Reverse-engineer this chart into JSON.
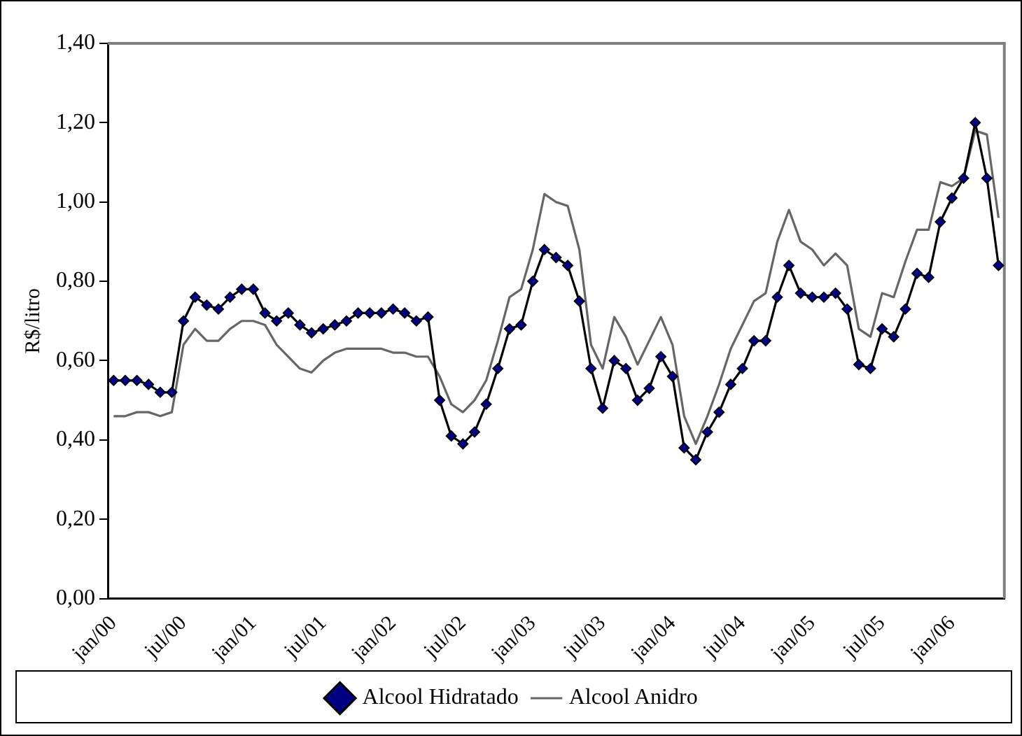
{
  "chart_data": {
    "type": "line",
    "ylabel": "R$/litro",
    "categories": [
      "jan/00",
      null,
      null,
      null,
      null,
      null,
      "jul/00",
      null,
      null,
      null,
      null,
      null,
      "jan/01",
      null,
      null,
      null,
      null,
      null,
      "jul/01",
      null,
      null,
      null,
      null,
      null,
      "jan/02",
      null,
      null,
      null,
      null,
      null,
      "jul/02",
      null,
      null,
      null,
      null,
      null,
      "jan/03",
      null,
      null,
      null,
      null,
      null,
      "jul/03",
      null,
      null,
      null,
      null,
      null,
      "jan/04",
      null,
      null,
      null,
      null,
      null,
      "jul/04",
      null,
      null,
      null,
      null,
      null,
      "jan/05",
      null,
      null,
      null,
      null,
      null,
      "jul/05",
      null,
      null,
      null,
      null,
      null,
      "jan/06",
      null,
      null,
      null,
      null
    ],
    "series": [
      {
        "name": "Alcool Hidratado",
        "color": "#000080",
        "marker": "diamond",
        "values": [
          0.55,
          0.55,
          0.55,
          0.54,
          0.52,
          0.52,
          0.7,
          0.76,
          0.74,
          0.73,
          0.76,
          0.78,
          0.78,
          0.72,
          0.7,
          0.72,
          0.69,
          0.67,
          0.68,
          0.69,
          0.7,
          0.72,
          0.72,
          0.72,
          0.73,
          0.72,
          0.7,
          0.71,
          0.5,
          0.41,
          0.39,
          0.42,
          0.49,
          0.58,
          0.68,
          0.69,
          0.8,
          0.88,
          0.86,
          0.84,
          0.75,
          0.58,
          0.48,
          0.6,
          0.58,
          0.5,
          0.53,
          0.61,
          0.56,
          0.38,
          0.35,
          0.42,
          0.47,
          0.54,
          0.58,
          0.65,
          0.65,
          0.76,
          0.84,
          0.77,
          0.76,
          0.76,
          0.77,
          0.73,
          0.59,
          0.58,
          0.68,
          0.66,
          0.73,
          0.82,
          0.81,
          0.95,
          1.01,
          1.06,
          1.2,
          1.06,
          0.84
        ]
      },
      {
        "name": "Alcool Anidro",
        "color": "#666666",
        "marker": "none",
        "values": [
          0.46,
          0.46,
          0.47,
          0.47,
          0.46,
          0.47,
          0.64,
          0.68,
          0.65,
          0.65,
          0.68,
          0.7,
          0.7,
          0.69,
          0.64,
          0.61,
          0.58,
          0.57,
          0.6,
          0.62,
          0.63,
          0.63,
          0.63,
          0.63,
          0.62,
          0.62,
          0.61,
          0.61,
          0.56,
          0.49,
          0.47,
          0.5,
          0.55,
          0.65,
          0.76,
          0.78,
          0.88,
          1.02,
          1.0,
          0.99,
          0.88,
          0.64,
          0.58,
          0.71,
          0.66,
          0.59,
          0.65,
          0.71,
          0.64,
          0.46,
          0.39,
          0.46,
          0.54,
          0.63,
          0.69,
          0.75,
          0.77,
          0.9,
          0.98,
          0.9,
          0.88,
          0.84,
          0.87,
          0.84,
          0.68,
          0.66,
          0.77,
          0.76,
          0.85,
          0.93,
          0.93,
          1.05,
          1.04,
          1.06,
          1.18,
          1.17,
          0.96
        ]
      }
    ],
    "ylim": [
      0,
      1.4
    ],
    "yticks": [
      {
        "value": 0,
        "label": "0,00"
      },
      {
        "value": 0.2,
        "label": "0,20"
      },
      {
        "value": 0.4,
        "label": "0,40"
      },
      {
        "value": 0.6,
        "label": "0,60"
      },
      {
        "value": 0.8,
        "label": "0,80"
      },
      {
        "value": 1.0,
        "label": "1,00"
      },
      {
        "value": 1.2,
        "label": "1,20"
      },
      {
        "value": 1.4,
        "label": "1,40"
      }
    ],
    "grid": false,
    "legend": "bottom",
    "line_style": "solid"
  }
}
